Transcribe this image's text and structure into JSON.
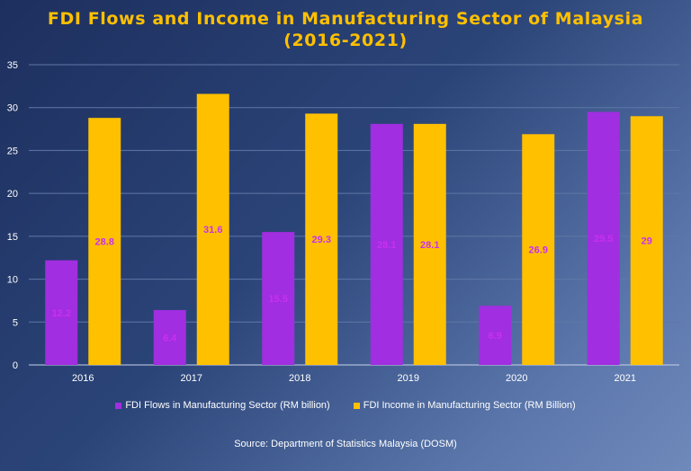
{
  "chart_data": {
    "type": "bar",
    "title_line1": "FDI Flows and Income in Manufacturing Sector of Malaysia",
    "title_line2": "(2016-2021)",
    "categories": [
      "2016",
      "2017",
      "2018",
      "2019",
      "2020",
      "2021"
    ],
    "series": [
      {
        "name": "FDI Flows in Manufacturing Sector (RM billion)",
        "color": "#a12ee0",
        "values": [
          12.2,
          6.4,
          15.5,
          28.1,
          6.9,
          29.5
        ]
      },
      {
        "name": "FDI Income in Manufacturing Sector (RM Billion)",
        "color": "#ffc000",
        "values": [
          28.8,
          31.6,
          29.3,
          28.1,
          26.9,
          29
        ]
      }
    ],
    "ylim": [
      0,
      35
    ],
    "yticks": [
      0,
      5,
      10,
      15,
      20,
      25,
      30,
      35
    ],
    "label_color": "#c830f0",
    "xlabel": "",
    "ylabel": "",
    "grid": true,
    "legend_position": "bottom",
    "source": "Source: Department of Statistics Malaysia (DOSM)"
  }
}
